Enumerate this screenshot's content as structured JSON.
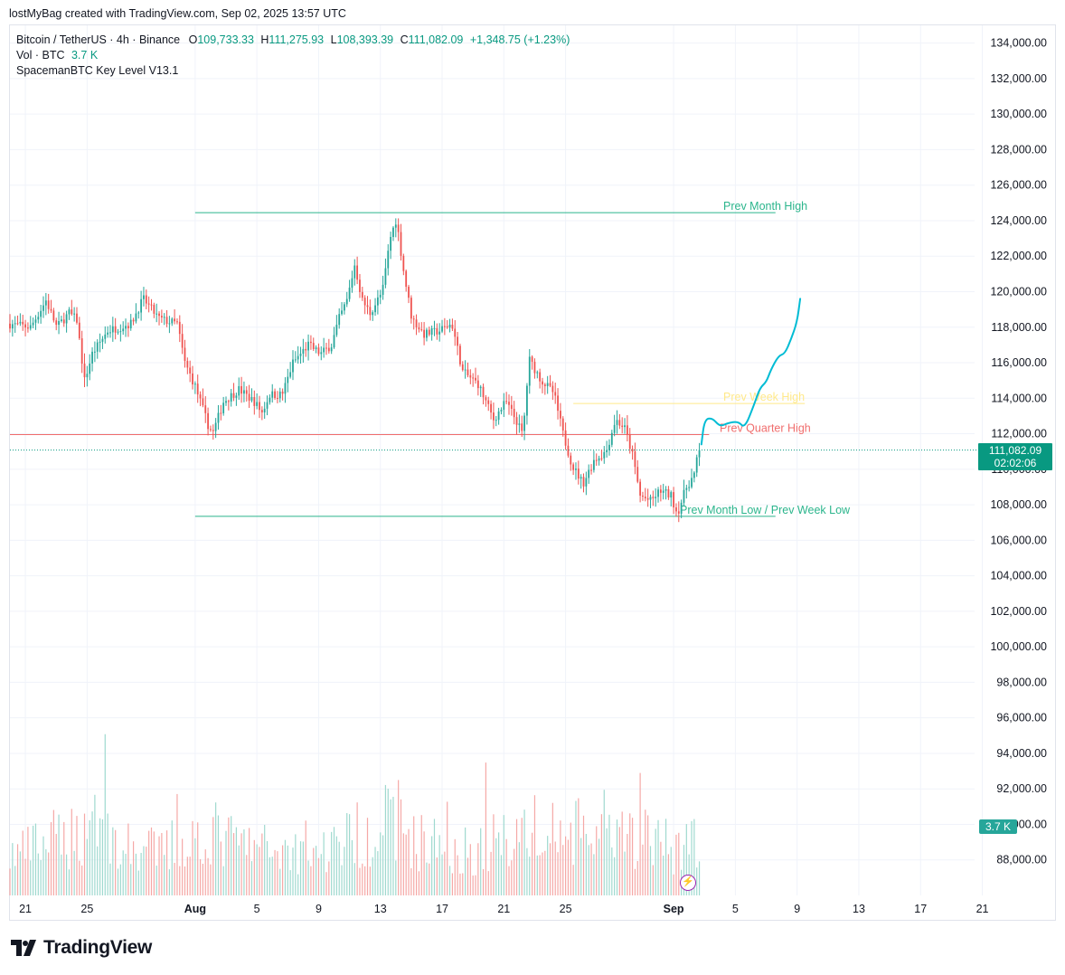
{
  "credit": "lostMyBag created with TradingView.com, Sep 02, 2025 13:57 UTC",
  "legend": {
    "symbol": "Bitcoin / TetherUS · 4h · Binance",
    "o_label": "O",
    "o_value": "109,733.33",
    "h_label": "H",
    "h_value": "111,275.93",
    "l_label": "L",
    "l_value": "108,393.39",
    "c_label": "C",
    "c_value": "111,082.09",
    "change": "+1,348.75 (+1.23%)",
    "vol_label": "Vol · BTC",
    "vol_value": "3.7 K",
    "indicator": "SpacemanBTC Key Level V13.1"
  },
  "price_tag": {
    "price": "111,082.09",
    "countdown": "02:02:06"
  },
  "volume_tag": "3.7 K",
  "brand": "TradingView",
  "colors": {
    "up": "#26a69a",
    "down": "#ef5350",
    "accent": "#089981",
    "projection": "#00bcd4",
    "monthly": "#2bb58c",
    "quarter": "#f06d6d",
    "week_high": "#ffe98a"
  },
  "chart_data": {
    "type": "candlestick",
    "timeframe": "4h",
    "y_range": [
      86000,
      135000
    ],
    "y_ticks": [
      134000,
      132000,
      130000,
      128000,
      126000,
      124000,
      122000,
      120000,
      118000,
      116000,
      114000,
      112000,
      110000,
      108000,
      106000,
      104000,
      102000,
      100000,
      98000,
      96000,
      94000,
      92000,
      90000,
      88000
    ],
    "y_tick_labels": [
      "134,000.00",
      "132,000.00",
      "130,000.00",
      "128,000.00",
      "126,000.00",
      "124,000.00",
      "122,000.00",
      "120,000.00",
      "118,000.00",
      "116,000.00",
      "114,000.00",
      "112,000.00",
      "110,000.00",
      "108,000.00",
      "106,000.00",
      "104,000.00",
      "102,000.00",
      "100,000.00",
      "98,000.00",
      "96,000.00",
      "94,000.00",
      "92,000.00",
      "90,000.00",
      "88,000.00"
    ],
    "x_day_range": [
      -11.0,
      51.5
    ],
    "x_ticks": [
      {
        "label": "21",
        "day": -10
      },
      {
        "label": "25",
        "day": -6
      },
      {
        "label": "Aug",
        "day": 1,
        "bold": true
      },
      {
        "label": "5",
        "day": 5
      },
      {
        "label": "9",
        "day": 9
      },
      {
        "label": "13",
        "day": 13
      },
      {
        "label": "17",
        "day": 17
      },
      {
        "label": "21",
        "day": 21
      },
      {
        "label": "25",
        "day": 25
      },
      {
        "label": "Sep",
        "day": 32,
        "bold": true
      },
      {
        "label": "5",
        "day": 36
      },
      {
        "label": "9",
        "day": 40
      },
      {
        "label": "13",
        "day": 44
      },
      {
        "label": "17",
        "day": 48
      },
      {
        "label": "21",
        "day": 52
      }
    ],
    "price_path": [
      [
        -11.0,
        118200
      ],
      [
        -9.5,
        118000
      ],
      [
        -8.5,
        119500
      ],
      [
        -7.8,
        118000
      ],
      [
        -7.0,
        118800
      ],
      [
        -6.5,
        118400
      ],
      [
        -6.0,
        115000
      ],
      [
        -5.5,
        116500
      ],
      [
        -4.5,
        117800
      ],
      [
        -3.0,
        118200
      ],
      [
        -2.2,
        119600
      ],
      [
        -1.2,
        118500
      ],
      [
        -0.5,
        118300
      ],
      [
        0.0,
        118200
      ],
      [
        0.5,
        116000
      ],
      [
        1.2,
        114600
      ],
      [
        2.0,
        112500
      ],
      [
        2.3,
        112000
      ],
      [
        3.0,
        113800
      ],
      [
        4.0,
        114500
      ],
      [
        5.0,
        113800
      ],
      [
        5.5,
        113200
      ],
      [
        6.0,
        114200
      ],
      [
        6.8,
        114200
      ],
      [
        7.5,
        116000
      ],
      [
        8.5,
        117000
      ],
      [
        9.3,
        116500
      ],
      [
        10.0,
        117000
      ],
      [
        10.5,
        118500
      ],
      [
        11.0,
        119500
      ],
      [
        11.5,
        121500
      ],
      [
        12.0,
        119500
      ],
      [
        12.5,
        118800
      ],
      [
        13.3,
        120000
      ],
      [
        13.8,
        123000
      ],
      [
        14.2,
        124100
      ],
      [
        14.7,
        121000
      ],
      [
        15.2,
        118500
      ],
      [
        16.0,
        117600
      ],
      [
        17.0,
        117800
      ],
      [
        17.8,
        118200
      ],
      [
        18.5,
        115500
      ],
      [
        19.5,
        114800
      ],
      [
        20.5,
        112800
      ],
      [
        21.3,
        113800
      ],
      [
        22.0,
        112700
      ],
      [
        22.4,
        111900
      ],
      [
        22.8,
        116200
      ],
      [
        23.6,
        115000
      ],
      [
        24.4,
        114300
      ],
      [
        25.0,
        112000
      ],
      [
        25.6,
        110200
      ],
      [
        26.3,
        109200
      ],
      [
        27.0,
        110500
      ],
      [
        27.8,
        111000
      ],
      [
        28.4,
        112800
      ],
      [
        29.0,
        112300
      ],
      [
        29.5,
        110800
      ],
      [
        30.0,
        108500
      ],
      [
        30.7,
        108200
      ],
      [
        31.3,
        108800
      ],
      [
        32.0,
        108500
      ],
      [
        32.4,
        107500
      ],
      [
        33.0,
        109000
      ],
      [
        33.5,
        109700
      ],
      [
        33.8,
        111082
      ]
    ],
    "volume_path": [
      [
        -11.0,
        100
      ],
      [
        -8.0,
        140
      ],
      [
        -6.0,
        160
      ],
      [
        -5.8,
        240
      ],
      [
        -4.0,
        120
      ],
      [
        -1.0,
        110
      ],
      [
        2.0,
        160
      ],
      [
        3.0,
        140
      ],
      [
        5.0,
        120
      ],
      [
        9.0,
        110
      ],
      [
        11.5,
        150
      ],
      [
        14.3,
        200
      ],
      [
        15.0,
        140
      ],
      [
        19.0,
        110
      ],
      [
        22.8,
        180
      ],
      [
        23.5,
        120
      ],
      [
        26.0,
        160
      ],
      [
        28.0,
        130
      ],
      [
        30.0,
        150
      ],
      [
        32.0,
        120
      ],
      [
        33.8,
        160
      ]
    ],
    "volume_max_price_equiv": 26,
    "key_levels": [
      {
        "label": "Prev Month High",
        "price": 124450,
        "from_day": 1,
        "to_day": 38.6
      },
      {
        "label": "Prev Quarter High",
        "price": 111950,
        "from_day": -11,
        "to_day": 34.3
      },
      {
        "label": "Prev Week High",
        "price": 113700,
        "from_day": 25.5,
        "to_day": 40.5
      },
      {
        "label": "Prev Month Low / Prev Week Low",
        "price": 107350,
        "from_day": 1,
        "to_day": 38.6
      }
    ],
    "current_price": 111082.09,
    "projection": [
      [
        33.8,
        111400
      ],
      [
        34.0,
        112800
      ],
      [
        34.5,
        112900
      ],
      [
        35.0,
        112400
      ],
      [
        35.5,
        112600
      ],
      [
        36.2,
        112700
      ],
      [
        36.6,
        112300
      ],
      [
        37.2,
        113600
      ],
      [
        37.6,
        114600
      ],
      [
        38.0,
        114900
      ],
      [
        38.3,
        115600
      ],
      [
        38.8,
        116400
      ],
      [
        39.2,
        116500
      ],
      [
        39.6,
        117300
      ],
      [
        40.0,
        118300
      ],
      [
        40.2,
        119600
      ]
    ]
  }
}
